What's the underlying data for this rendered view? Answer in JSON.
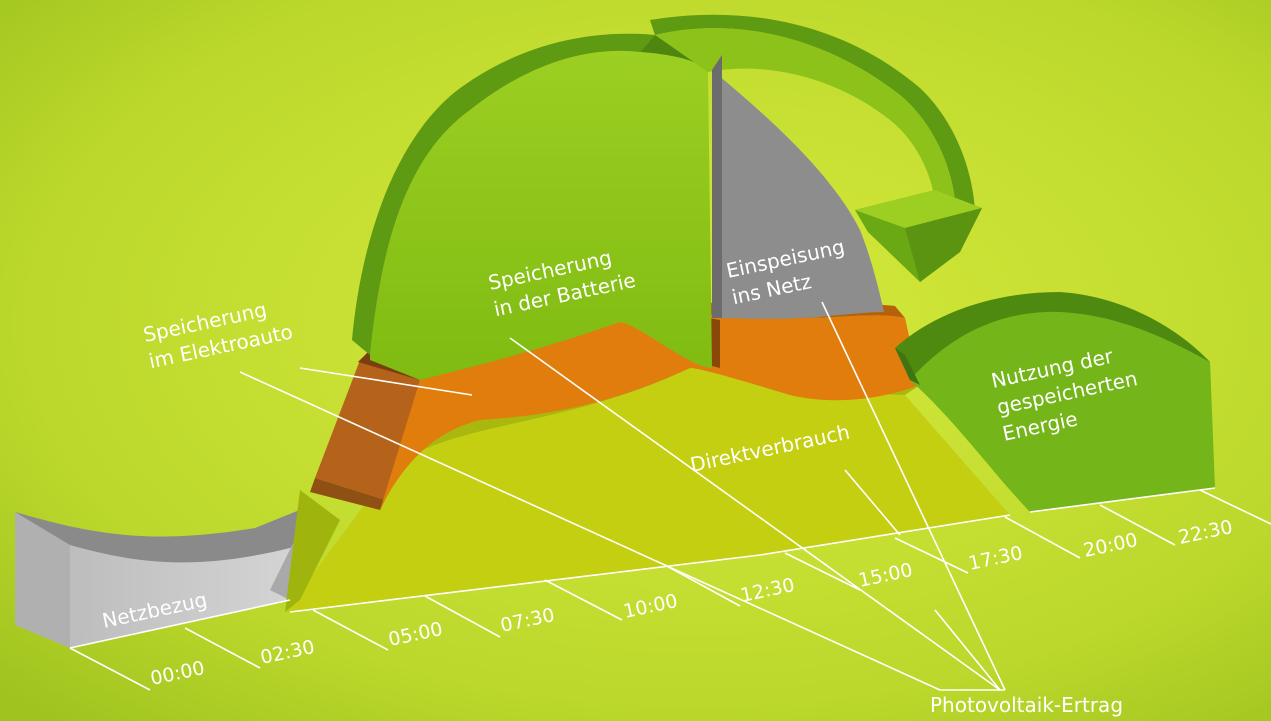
{
  "diagram": {
    "labels": {
      "netzbezug": "Netzbezug",
      "speicherung_elektroauto_1": "Speicherung",
      "speicherung_elektroauto_2": "im Elektroauto",
      "speicherung_batterie_1": "Speicherung",
      "speicherung_batterie_2": "in der Batterie",
      "einspeisung_1": "Einspeisung",
      "einspeisung_2": "ins Netz",
      "nutzung_1": "Nutzung der",
      "nutzung_2": "gespeicherten",
      "nutzung_3": "Energie",
      "direktverbrauch": "Direktverbrauch",
      "photovoltaik": "Photovoltaik-Ertrag"
    },
    "time_ticks": [
      "00:00",
      "02:30",
      "05:00",
      "07:30",
      "10:00",
      "12:30",
      "15:00",
      "17:30",
      "20:00",
      "22:30"
    ],
    "colors": {
      "background": "#b8d52a",
      "light_green": "#8cc21a",
      "dark_green": "#5e9a12",
      "yellow_green": "#c4cf12",
      "orange": "#e07d0c",
      "grey": "#8a8a8a",
      "light_grey": "#c9c9c9"
    }
  }
}
